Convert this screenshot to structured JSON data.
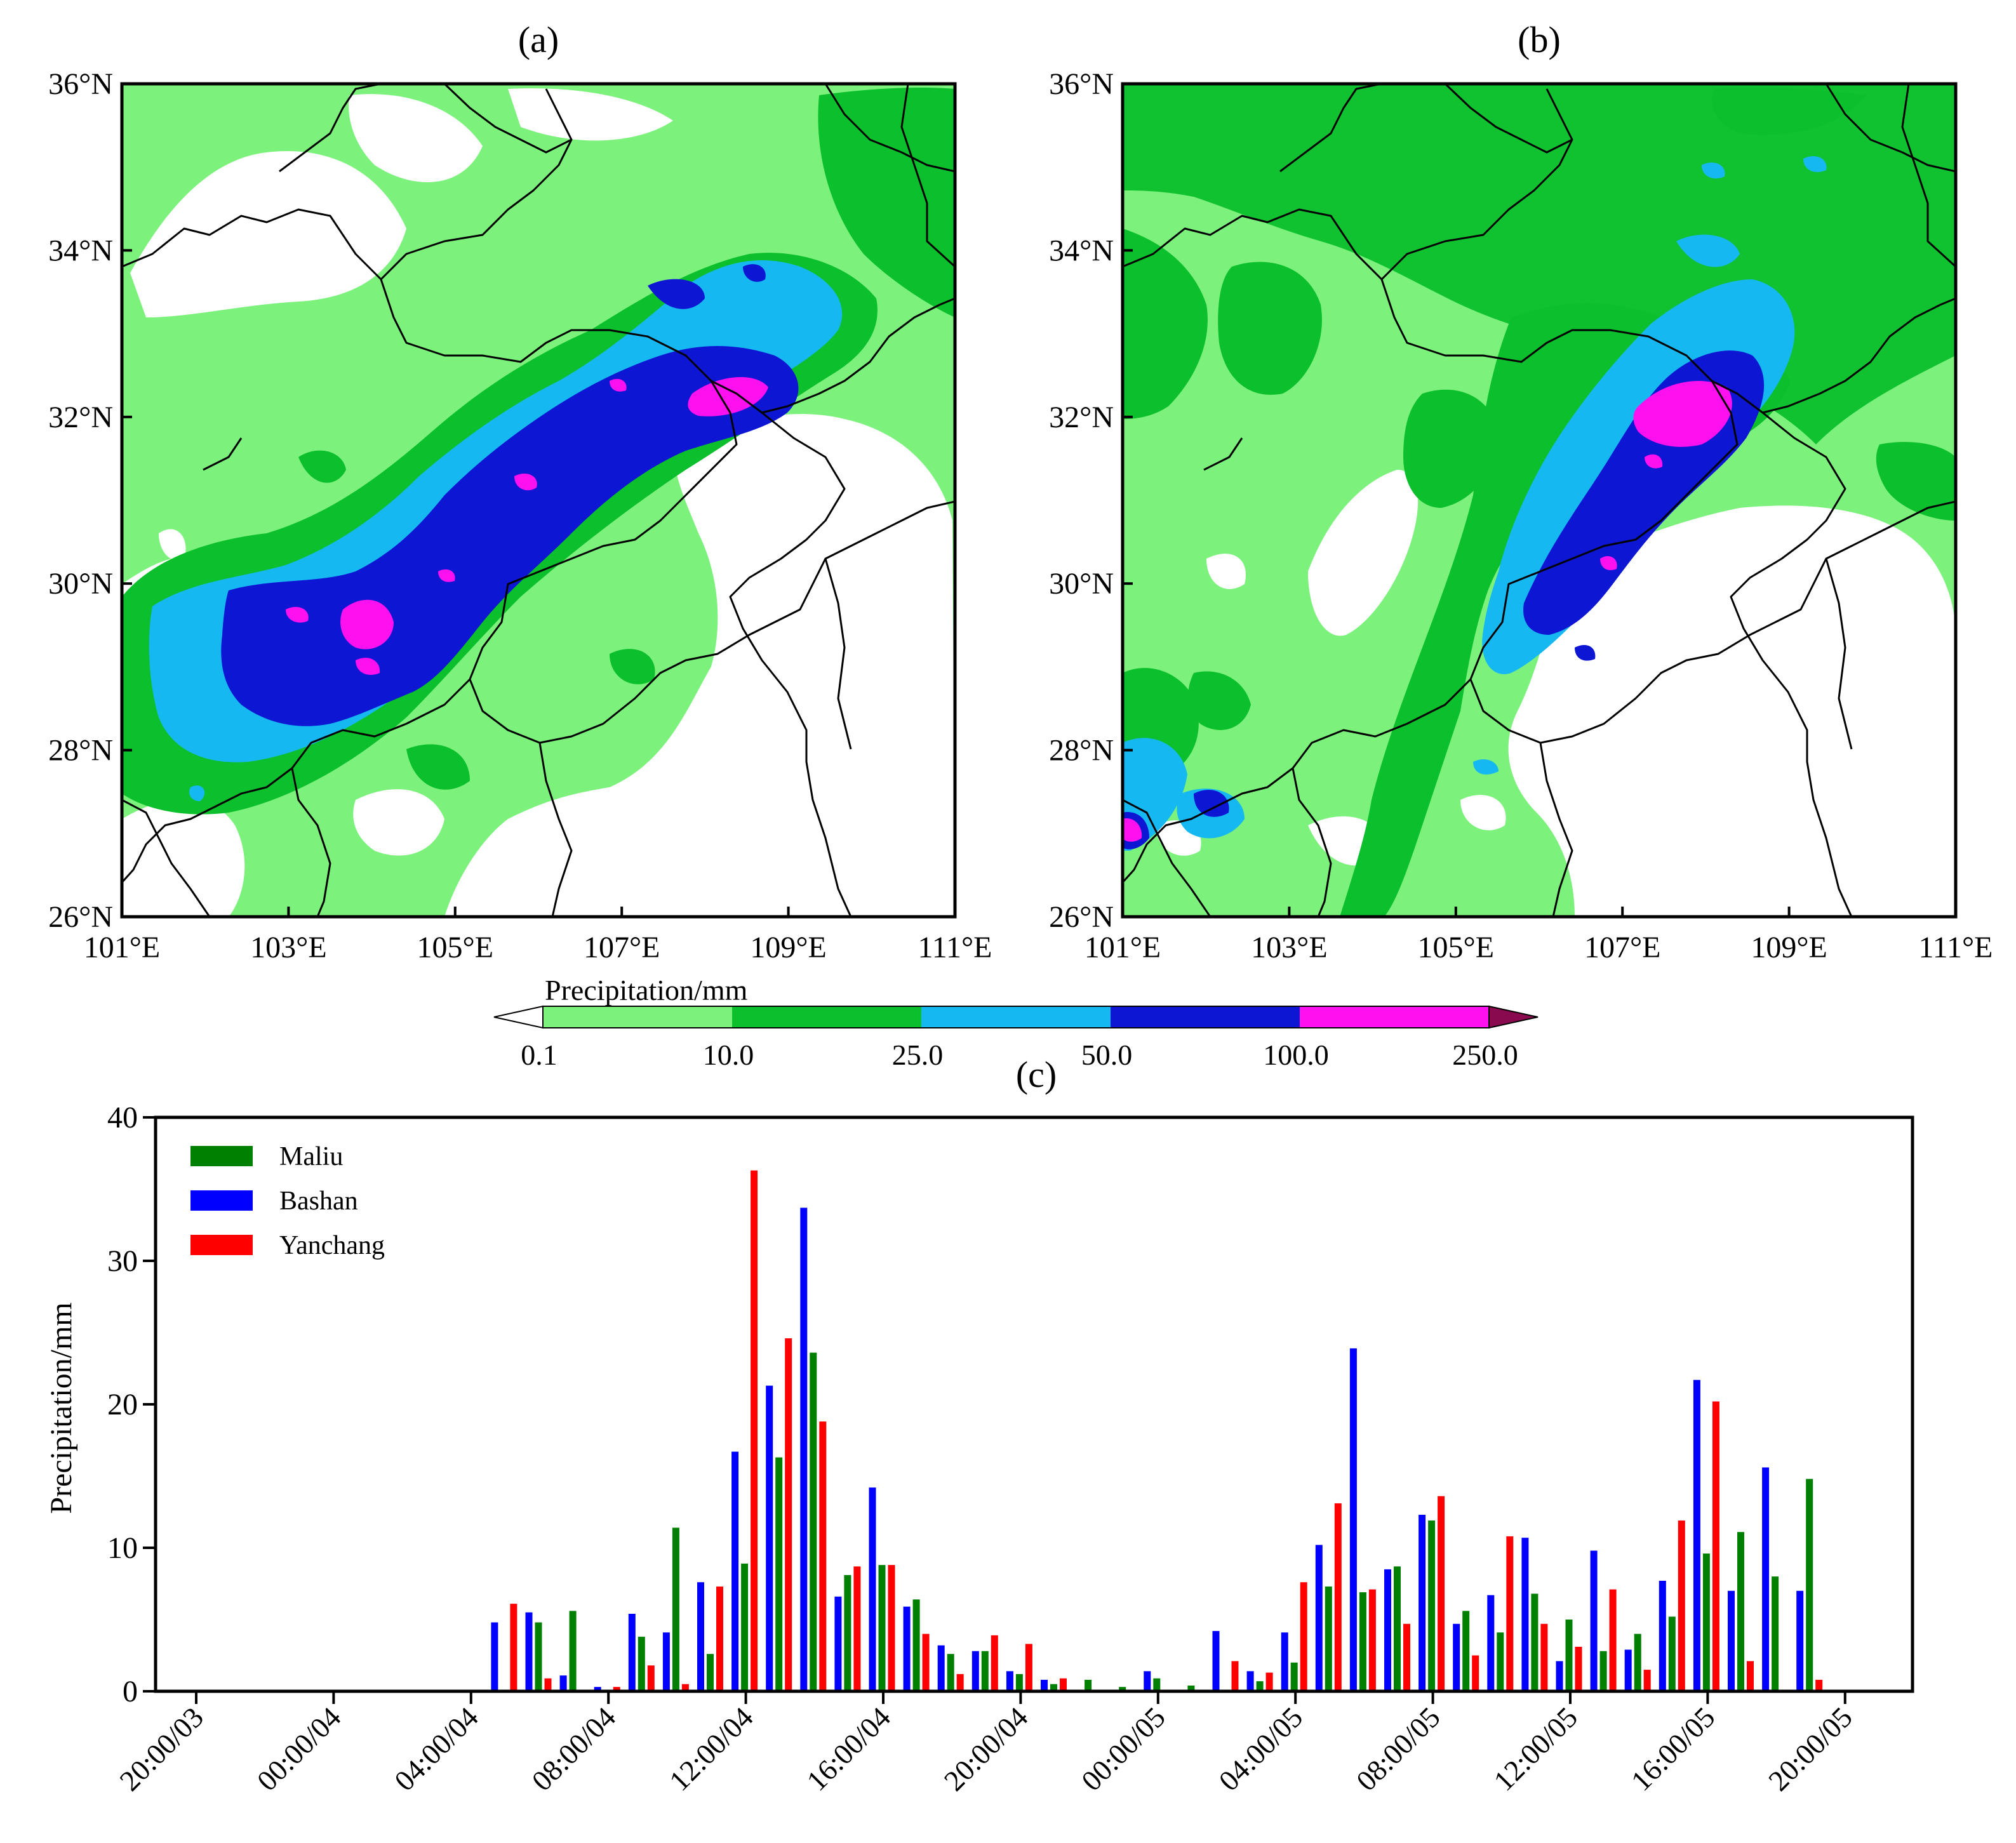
{
  "panels": {
    "a": {
      "label": "(a)",
      "x_ticks": [
        "101°E",
        "103°E",
        "105°E",
        "107°E",
        "109°E",
        "111°E"
      ],
      "y_ticks": [
        "26°N",
        "28°N",
        "30°N",
        "32°N",
        "34°N",
        "36°N"
      ]
    },
    "b": {
      "label": "(b)",
      "x_ticks": [
        "101°E",
        "103°E",
        "105°E",
        "107°E",
        "109°E",
        "111°E"
      ],
      "y_ticks": [
        "26°N",
        "28°N",
        "30°N",
        "32°N",
        "34°N",
        "36°N"
      ]
    }
  },
  "colorbar": {
    "title": "Precipitation/mm",
    "levels": [
      "0.1",
      "10.0",
      "25.0",
      "50.0",
      "100.0",
      "250.0"
    ],
    "colors": [
      "#7cf27c",
      "#0cbf2c",
      "#16b8f2",
      "#0d16d2",
      "#ff10ef"
    ],
    "under_color": "#ffffff",
    "over_color": "#8a0a50"
  },
  "map_colors": {
    "white": "#ffffff",
    "light_green": "#7cf27c",
    "green": "#0cbf2c",
    "cyan": "#16b8f2",
    "blue": "#0d16d2",
    "magenta": "#ff10ef"
  },
  "chart_data": {
    "type": "bar",
    "panel_label": "(c)",
    "ylabel": "Precipitation/mm",
    "xlabel": "",
    "ylim": [
      0,
      40
    ],
    "y_ticks": [
      0,
      10,
      20,
      30,
      40
    ],
    "x_tick_labels": [
      "20:00/03",
      "00:00/04",
      "04:00/04",
      "08:00/04",
      "12:00/04",
      "16:00/04",
      "20:00/04",
      "00:00/05",
      "04:00/05",
      "08:00/05",
      "12:00/05",
      "16:00/05",
      "20:00/05"
    ],
    "hours_from_start": [
      0,
      1,
      2,
      3,
      4,
      5,
      6,
      7,
      8,
      9,
      10,
      11,
      12,
      13,
      14,
      15,
      16,
      17,
      18,
      19,
      20,
      21,
      22,
      23,
      24,
      25,
      26,
      27,
      28,
      29,
      30,
      31,
      32,
      33,
      34,
      35,
      36,
      37,
      38,
      39,
      40,
      41,
      42,
      43,
      44,
      45,
      46,
      47,
      48
    ],
    "legend_position": "top-left",
    "series": [
      {
        "name": "Bashan",
        "color": "#0000ff",
        "values": [
          0,
          0,
          0,
          0,
          0,
          0,
          0,
          0,
          0,
          4.8,
          5.5,
          1.1,
          0.3,
          5.4,
          4.1,
          7.6,
          16.7,
          21.3,
          33.7,
          6.6,
          14.2,
          5.9,
          3.2,
          2.8,
          1.4,
          0.8,
          0,
          0,
          1.4,
          0,
          4.2,
          1.4,
          4.1,
          10.2,
          23.9,
          8.5,
          12.3,
          4.7,
          6.7,
          10.7,
          2.1,
          9.8,
          2.9,
          7.7,
          21.7,
          7.0,
          15.6,
          7.0,
          0
        ]
      },
      {
        "name": "Maliu",
        "color": "#008000",
        "values": [
          0,
          0,
          0,
          0,
          0,
          0,
          0,
          0,
          0,
          0,
          4.8,
          5.6,
          0,
          3.8,
          11.4,
          2.6,
          8.9,
          16.3,
          23.6,
          8.1,
          8.8,
          6.4,
          2.6,
          2.8,
          1.2,
          0.5,
          0.8,
          0.3,
          0.9,
          0.4,
          0,
          0.7,
          2.0,
          7.3,
          6.9,
          8.7,
          11.9,
          5.6,
          4.1,
          6.8,
          5.0,
          2.8,
          4.0,
          5.2,
          9.6,
          11.1,
          8.0,
          14.8,
          0
        ]
      },
      {
        "name": "Yanchang",
        "color": "#ff0000",
        "values": [
          0,
          0,
          0,
          0,
          0,
          0,
          0,
          0,
          0,
          6.1,
          0.9,
          0,
          0.3,
          1.8,
          0.5,
          7.3,
          36.3,
          24.6,
          18.8,
          8.7,
          8.8,
          4.0,
          1.2,
          3.9,
          3.3,
          0.9,
          0,
          0,
          0,
          0,
          2.1,
          1.3,
          7.6,
          13.1,
          7.1,
          4.7,
          13.6,
          2.5,
          10.8,
          4.7,
          3.1,
          7.1,
          1.5,
          11.9,
          20.2,
          2.1,
          0,
          0.8,
          0
        ]
      }
    ]
  }
}
